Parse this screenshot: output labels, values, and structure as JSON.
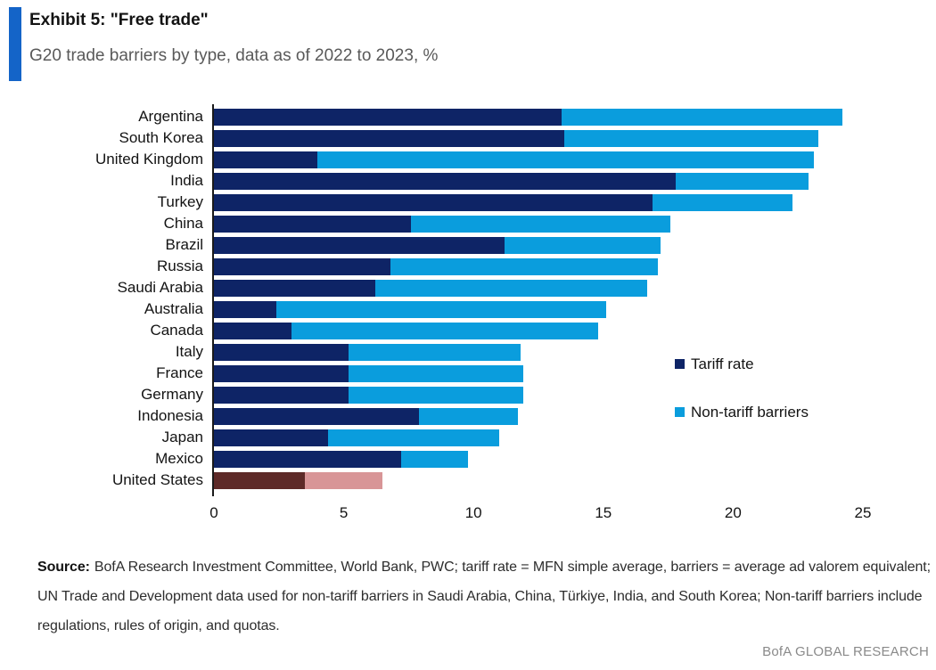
{
  "header": {
    "exhibit_title": "Exhibit 5: \"Free trade\"",
    "subtitle": "G20 trade barriers by type, data as of 2022 to 2023, %",
    "accent_color": "#1464c8"
  },
  "chart_data": {
    "type": "bar",
    "orientation": "horizontal",
    "stacked": true,
    "title": "G20 trade barriers by type, data as of 2022 to 2023, %",
    "categories": [
      "Argentina",
      "South Korea",
      "United Kingdom",
      "India",
      "Turkey",
      "China",
      "Brazil",
      "Russia",
      "Saudi Arabia",
      "Australia",
      "Canada",
      "Italy",
      "France",
      "Germany",
      "Indonesia",
      "Japan",
      "Mexico",
      "United States"
    ],
    "series": [
      {
        "name": "Tariff rate",
        "color": "#0e2466",
        "values": [
          13.4,
          13.5,
          4.0,
          17.8,
          16.9,
          7.6,
          11.2,
          6.8,
          6.2,
          2.4,
          3.0,
          5.2,
          5.2,
          5.2,
          7.9,
          4.4,
          7.2,
          3.5
        ]
      },
      {
        "name": "Non-tariff barriers",
        "color": "#0a9ddd",
        "values": [
          10.8,
          9.8,
          19.1,
          5.1,
          5.4,
          10.0,
          6.0,
          10.3,
          10.5,
          12.7,
          11.8,
          6.6,
          6.7,
          6.7,
          3.8,
          6.6,
          2.6,
          3.0
        ]
      }
    ],
    "highlight": {
      "category": "United States",
      "index": 17,
      "colors": [
        "#5e2a28",
        "#d89597"
      ]
    },
    "xlim": [
      0,
      25
    ],
    "x_ticks": [
      0,
      5,
      10,
      15,
      20,
      25
    ],
    "grid": false,
    "legend_position": "right-middle"
  },
  "footer": {
    "source_label": "Source:",
    "source_text": "BofA Research Investment Committee, World Bank, PWC; tariff rate = MFN simple average, barriers = average ad valorem equivalent; UN Trade and Development data used for non-tariff barriers in Saudi Arabia, China, Türkiye, India, and South Korea; Non-tariff barriers include regulations, rules of origin, and quotas.",
    "branding": "BofA GLOBAL RESEARCH"
  }
}
